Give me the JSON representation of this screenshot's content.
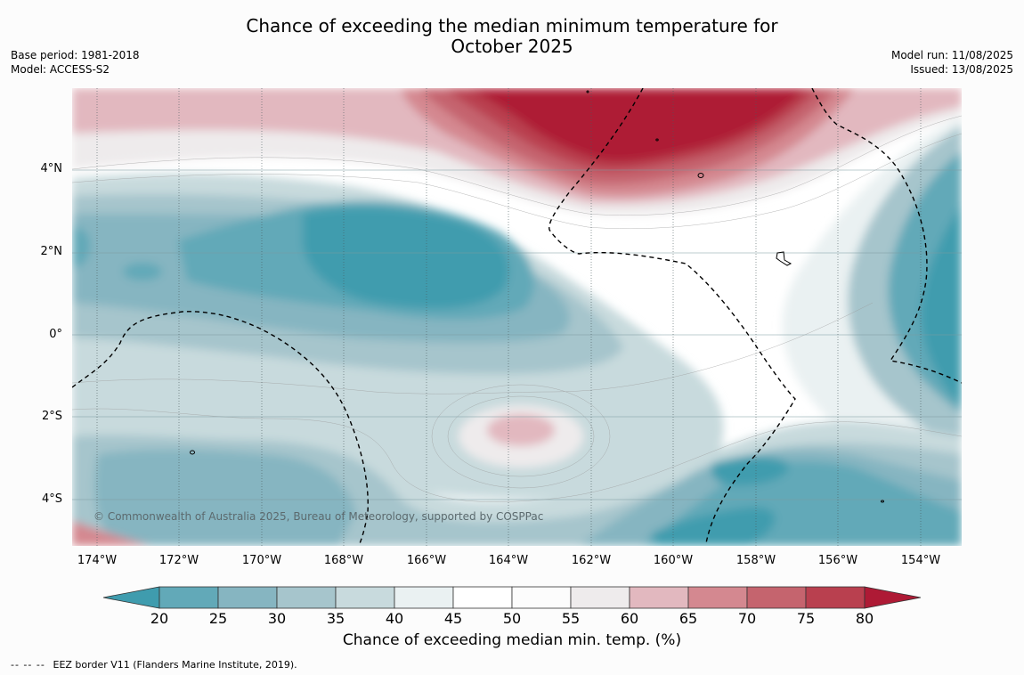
{
  "title_line1": "Chance of exceeding the median minimum temperature for",
  "title_line2": "October 2025",
  "base_period": "Base period: 1981-2018",
  "model": "Model: ACCESS-S2",
  "model_run": "Model run: 11/08/2025",
  "issued": "Issued: 13/08/2025",
  "copyright": "© Commonwealth of Australia 2025, Bureau of Meteorology, supported by COSPPac",
  "lat_labels": [
    "4°N",
    "2°N",
    "0°",
    "2°S",
    "4°S"
  ],
  "lon_labels": [
    "174°W",
    "172°W",
    "170°W",
    "168°W",
    "166°W",
    "164°W",
    "162°W",
    "160°W",
    "158°W",
    "156°W",
    "154°W"
  ],
  "colorbar": {
    "ticks": [
      "20",
      "25",
      "30",
      "35",
      "40",
      "45",
      "50",
      "55",
      "60",
      "65",
      "70",
      "75",
      "80"
    ],
    "label": "Chance of exceeding median min. temp. (%)",
    "colors": [
      "#3f9cae",
      "#62a9b8",
      "#86b5c1",
      "#a6c5cc",
      "#c8dadd",
      "#eaf1f2",
      "#ffffff",
      "#fcfcfc",
      "#eeebec",
      "#e2b8bf",
      "#d48890",
      "#c5646e",
      "#b9404f",
      "#ae1a35"
    ]
  },
  "legend_note": {
    "symbol": "-- -- --",
    "text": "EEZ border V11 (Flanders Marine Institute, 2019)."
  }
}
